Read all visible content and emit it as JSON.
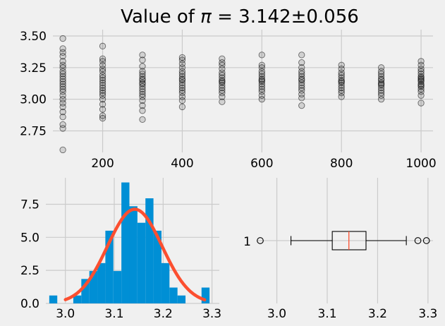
{
  "colors": {
    "background": "#f0f0f0",
    "grid": "#cbcbcb",
    "hist": "#008fd5",
    "pdf": "#fc4f30",
    "median": "#fc4f30"
  },
  "chart_data": [
    {
      "type": "scatter",
      "title": "Value of π = 3.142±0.056",
      "title_parts": {
        "name": "Value of",
        "symbol": "π",
        "eq": "=",
        "value": "3.142±0.056"
      },
      "xlim": [
        75,
        1030
      ],
      "ylim": [
        2.58,
        3.55
      ],
      "xticks": [
        200,
        400,
        600,
        800,
        1000
      ],
      "yticks": [
        2.75,
        3.0,
        3.25,
        3.5
      ],
      "ytick_labels": [
        "2.75",
        "3.00",
        "3.25",
        "3.50"
      ],
      "grid": true,
      "series": [
        {
          "x": 100,
          "y": [
            2.6,
            2.77,
            2.8,
            2.86,
            2.9,
            2.94,
            2.97,
            3.0,
            3.03,
            3.06,
            3.08,
            3.1,
            3.12,
            3.14,
            3.16,
            3.18,
            3.2,
            3.22,
            3.25,
            3.27,
            3.3,
            3.34,
            3.37,
            3.4,
            3.48
          ]
        },
        {
          "x": 200,
          "y": [
            2.85,
            2.87,
            2.92,
            2.96,
            3.0,
            3.03,
            3.05,
            3.07,
            3.09,
            3.11,
            3.13,
            3.15,
            3.17,
            3.19,
            3.22,
            3.24,
            3.27,
            3.3,
            3.32,
            3.42
          ]
        },
        {
          "x": 300,
          "y": [
            2.84,
            2.91,
            2.95,
            2.99,
            3.02,
            3.04,
            3.06,
            3.08,
            3.1,
            3.12,
            3.13,
            3.15,
            3.16,
            3.18,
            3.2,
            3.22,
            3.26,
            3.31,
            3.35
          ]
        },
        {
          "x": 400,
          "y": [
            2.94,
            2.99,
            3.02,
            3.05,
            3.07,
            3.09,
            3.11,
            3.13,
            3.15,
            3.16,
            3.18,
            3.2,
            3.22,
            3.25,
            3.28,
            3.31,
            3.33
          ]
        },
        {
          "x": 500,
          "y": [
            2.98,
            3.02,
            3.05,
            3.07,
            3.09,
            3.11,
            3.13,
            3.14,
            3.15,
            3.17,
            3.19,
            3.21,
            3.24,
            3.27,
            3.29,
            3.32
          ]
        },
        {
          "x": 600,
          "y": [
            3.0,
            3.03,
            3.06,
            3.08,
            3.1,
            3.12,
            3.14,
            3.15,
            3.16,
            3.18,
            3.2,
            3.22,
            3.25,
            3.27,
            3.35
          ]
        },
        {
          "x": 700,
          "y": [
            2.95,
            3.01,
            3.04,
            3.07,
            3.09,
            3.11,
            3.13,
            3.15,
            3.16,
            3.18,
            3.2,
            3.22,
            3.25,
            3.29,
            3.35
          ]
        },
        {
          "x": 800,
          "y": [
            3.02,
            3.05,
            3.07,
            3.09,
            3.11,
            3.13,
            3.14,
            3.15,
            3.17,
            3.19,
            3.21,
            3.24,
            3.27
          ]
        },
        {
          "x": 900,
          "y": [
            3.0,
            3.03,
            3.05,
            3.07,
            3.09,
            3.11,
            3.12,
            3.13,
            3.15,
            3.16,
            3.18,
            3.2,
            3.22,
            3.25
          ]
        },
        {
          "x": 1000,
          "y": [
            2.97,
            3.03,
            3.06,
            3.08,
            3.1,
            3.11,
            3.12,
            3.14,
            3.15,
            3.16,
            3.17,
            3.18,
            3.2,
            3.22,
            3.24,
            3.27,
            3.3
          ]
        }
      ]
    },
    {
      "type": "bar",
      "subtype": "histogram with normal density curve",
      "xlim": [
        2.96,
        3.315
      ],
      "ylim": [
        0,
        9.5
      ],
      "xticks": [
        3.0,
        3.1,
        3.2,
        3.3
      ],
      "xtick_labels": [
        "3.0",
        "3.1",
        "3.2",
        "3.3"
      ],
      "yticks": [
        0.0,
        2.5,
        5.0,
        7.5
      ],
      "ytick_labels": [
        "0.0",
        "2.5",
        "5.0",
        "7.5"
      ],
      "grid": true,
      "bin_edges": [
        2.967,
        2.9834,
        2.9998,
        3.0162,
        3.0326,
        3.049,
        3.0654,
        3.0818,
        3.0982,
        3.1146,
        3.131,
        3.1474,
        3.1638,
        3.1802,
        3.1966,
        3.213,
        3.2294,
        3.2458,
        3.2622,
        3.2786,
        3.295
      ],
      "values": [
        0.6,
        0,
        0,
        0.6,
        1.85,
        2.45,
        3.05,
        5.5,
        2.45,
        9.15,
        7.35,
        6.1,
        7.95,
        5.5,
        3.05,
        1.2,
        0.6,
        0,
        0,
        1.2
      ],
      "pdf": {
        "mean": 3.142,
        "std": 0.056,
        "x_range": [
          3.0,
          3.285
        ]
      }
    },
    {
      "type": "boxplot",
      "orientation": "horizontal",
      "category": "1",
      "xlim": [
        2.96,
        3.31
      ],
      "xticks": [
        3.0,
        3.1,
        3.2,
        3.3
      ],
      "xtick_labels": [
        "3.0",
        "3.1",
        "3.2",
        "3.3"
      ],
      "grid": true,
      "whisker_low": 3.028,
      "q1": 3.11,
      "median": 3.143,
      "q3": 3.177,
      "whisker_high": 3.257,
      "fliers": [
        2.967,
        3.28,
        3.297
      ]
    }
  ]
}
